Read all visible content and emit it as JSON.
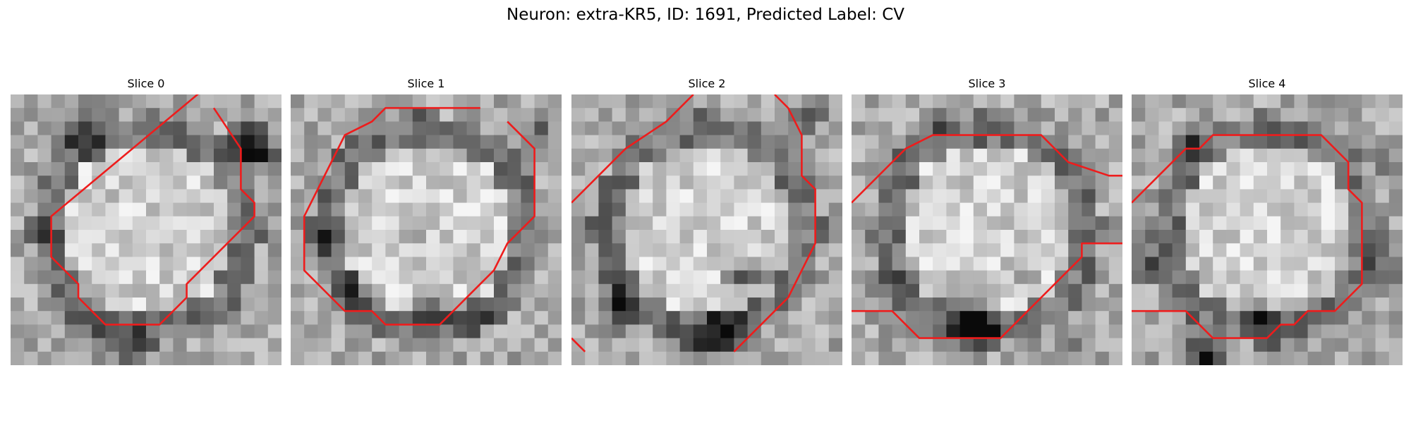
{
  "figure": {
    "title": "Neuron: extra-KR5, ID: 1691, Predicted Label: CV"
  },
  "colors": {
    "contour": "#ee1c1c",
    "background": "#ffffff"
  },
  "panels": [
    {
      "label": "Slice 0",
      "contour": [
        [
          [
            15,
            -1
          ],
          [
            3,
            9
          ],
          [
            3,
            12
          ],
          [
            5,
            14
          ],
          [
            5,
            15
          ],
          [
            7,
            17
          ],
          [
            11,
            17
          ],
          [
            13,
            15
          ],
          [
            13,
            14
          ],
          [
            16,
            11
          ],
          [
            18,
            9
          ],
          [
            18,
            8
          ],
          [
            17,
            7
          ],
          [
            17,
            4
          ],
          [
            15,
            1
          ]
        ]
      ],
      "dark_regions": [
        [
          17,
          3,
          2.2,
          0.55
        ],
        [
          18,
          4,
          1.6,
          0.5
        ],
        [
          2,
          10,
          1.5,
          0.35
        ],
        [
          6,
          8,
          2,
          0.18
        ],
        [
          8,
          18,
          3,
          0.3
        ],
        [
          5,
          2,
          3,
          0.3
        ]
      ]
    },
    {
      "label": "Slice 1",
      "contour": [
        [
          [
            14,
            1
          ],
          [
            7,
            1
          ],
          [
            6,
            2
          ],
          [
            4,
            3
          ],
          [
            3,
            5
          ],
          [
            2,
            7
          ],
          [
            1,
            9
          ],
          [
            1,
            13
          ],
          [
            3,
            15
          ],
          [
            4,
            16
          ],
          [
            6,
            16
          ],
          [
            7,
            17
          ],
          [
            11,
            17
          ],
          [
            12,
            16
          ],
          [
            15,
            13
          ],
          [
            16,
            11
          ],
          [
            18,
            9
          ],
          [
            18,
            4
          ],
          [
            16,
            2
          ]
        ]
      ],
      "dark_regions": [
        [
          4,
          14,
          1.8,
          0.45
        ],
        [
          10,
          15,
          1.8,
          0.4
        ],
        [
          2,
          10,
          1.5,
          0.35
        ],
        [
          18,
          2,
          1.5,
          0.35
        ],
        [
          9,
          9,
          2,
          0.2
        ],
        [
          13,
          16,
          2,
          0.3
        ]
      ]
    },
    {
      "label": "Slice 2",
      "contour": [
        [
          [
            0,
            8
          ],
          [
            2,
            6
          ],
          [
            4,
            4
          ],
          [
            7,
            2
          ],
          [
            8,
            1
          ],
          [
            9,
            0
          ]
        ],
        [
          [
            15,
            0
          ],
          [
            16,
            1
          ],
          [
            17,
            3
          ],
          [
            17,
            6
          ],
          [
            18,
            7
          ],
          [
            18,
            11
          ],
          [
            17,
            13
          ],
          [
            16,
            15
          ],
          [
            15,
            16
          ],
          [
            14,
            17
          ],
          [
            13,
            18
          ],
          [
            12,
            19
          ]
        ],
        [
          [
            0,
            18
          ],
          [
            1,
            19
          ]
        ]
      ],
      "dark_regions": [
        [
          12,
          13,
          2,
          0.45
        ],
        [
          11,
          17,
          2.5,
          0.55
        ],
        [
          3,
          15,
          2.5,
          0.4
        ],
        [
          17,
          1,
          1.8,
          0.4
        ],
        [
          14,
          13,
          1.5,
          0.3
        ],
        [
          8,
          18,
          2,
          0.4
        ]
      ]
    },
    {
      "label": "Slice 3",
      "contour": [
        [
          [
            0,
            8
          ],
          [
            2,
            6
          ],
          [
            3,
            5
          ],
          [
            4,
            4
          ],
          [
            6,
            3
          ],
          [
            14,
            3
          ],
          [
            16,
            5
          ],
          [
            19,
            6
          ],
          [
            20,
            6
          ]
        ],
        [
          [
            0,
            16
          ],
          [
            3,
            16
          ],
          [
            4,
            17
          ],
          [
            5,
            18
          ],
          [
            11,
            18
          ],
          [
            12,
            17
          ],
          [
            13,
            16
          ],
          [
            14,
            15
          ],
          [
            15,
            14
          ],
          [
            16,
            13
          ],
          [
            17,
            12
          ],
          [
            17,
            11
          ],
          [
            19,
            11
          ],
          [
            20,
            11
          ]
        ]
      ],
      "dark_regions": [
        [
          8,
          16,
          2.5,
          0.5
        ],
        [
          9,
          17,
          1.8,
          0.5
        ],
        [
          12,
          13,
          1.5,
          0.25
        ],
        [
          2,
          14,
          2,
          0.3
        ],
        [
          6,
          2,
          2,
          0.25
        ],
        [
          16,
          18,
          2,
          0.3
        ]
      ]
    },
    {
      "label": "Slice 4",
      "contour": [
        [
          [
            0,
            8
          ],
          [
            2,
            6
          ],
          [
            4,
            4
          ],
          [
            5,
            4
          ],
          [
            6,
            3
          ],
          [
            14,
            3
          ],
          [
            15,
            4
          ],
          [
            16,
            5
          ],
          [
            16,
            7
          ],
          [
            17,
            8
          ],
          [
            17,
            14
          ],
          [
            16,
            15
          ],
          [
            15,
            16
          ],
          [
            13,
            16
          ],
          [
            12,
            17
          ],
          [
            11,
            17
          ],
          [
            10,
            18
          ],
          [
            6,
            18
          ],
          [
            5,
            17
          ],
          [
            4,
            16
          ],
          [
            3,
            16
          ],
          [
            2,
            16
          ],
          [
            0,
            16
          ]
        ]
      ],
      "dark_regions": [
        [
          9,
          16,
          1.8,
          0.55
        ],
        [
          5,
          19,
          2.5,
          0.5
        ],
        [
          4,
          3,
          1.8,
          0.35
        ],
        [
          1,
          12,
          2,
          0.3
        ],
        [
          18,
          12,
          2,
          0.3
        ],
        [
          18,
          4,
          2,
          0.3
        ]
      ]
    }
  ]
}
